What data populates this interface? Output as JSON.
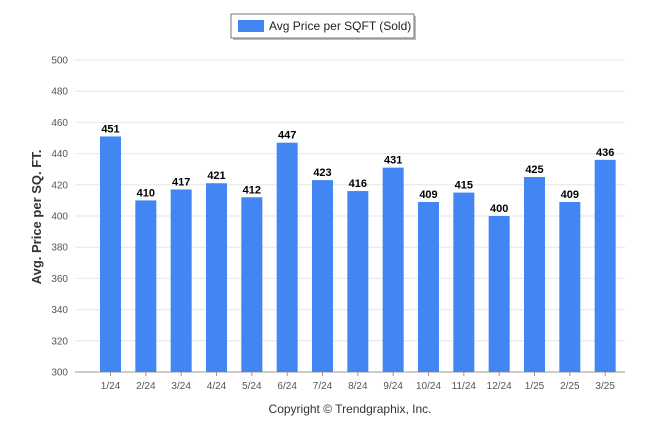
{
  "chart_data": {
    "type": "bar",
    "categories": [
      "1/24",
      "2/24",
      "3/24",
      "4/24",
      "5/24",
      "6/24",
      "7/24",
      "8/24",
      "9/24",
      "10/24",
      "11/24",
      "12/24",
      "1/25",
      "2/25",
      "3/25"
    ],
    "series": [
      {
        "name": "Avg Price per SQFT (Sold)",
        "values": [
          451,
          410,
          417,
          421,
          412,
          447,
          423,
          416,
          431,
          409,
          415,
          400,
          425,
          409,
          436
        ]
      }
    ],
    "ylabel": "Avg. Price per SQ. FT.",
    "xlabel": "",
    "ylim": [
      300,
      500
    ],
    "yticks": [
      300,
      320,
      340,
      360,
      380,
      400,
      420,
      440,
      460,
      480,
      500
    ],
    "grid": true,
    "legend_position": "top-center",
    "bar_color": "#4286f4",
    "footer": "Copyright © Trendgraphix, Inc."
  }
}
